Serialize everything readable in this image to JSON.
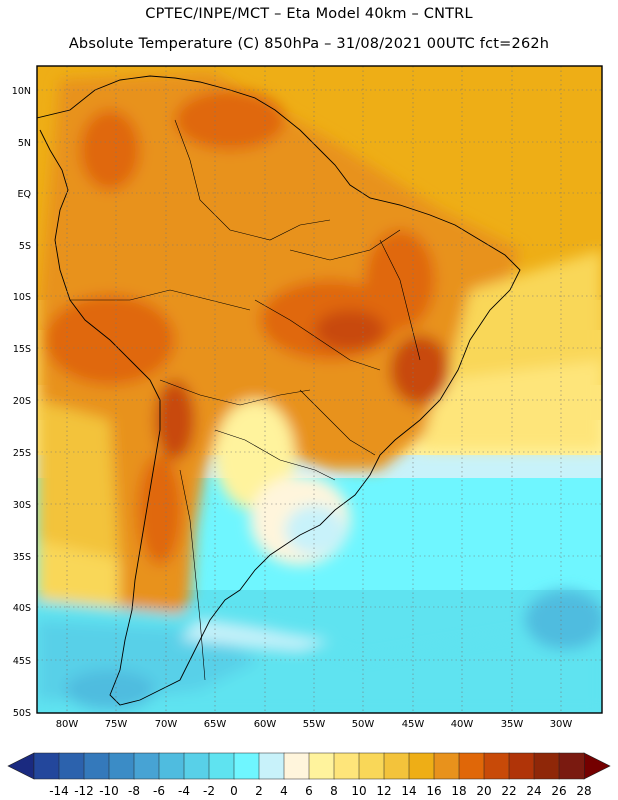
{
  "header": {
    "line1": "CPTEC/INPE/MCT –  Eta Model 40km – CNTRL",
    "line2": "Absolute Temperature (C) 850hPa – 31/08/2021 00UTC fct=262h"
  },
  "map": {
    "lat_labels": [
      "10N",
      "5N",
      "EQ",
      "5S",
      "10S",
      "15S",
      "20S",
      "25S",
      "30S",
      "35S",
      "40S",
      "45S",
      "50S"
    ],
    "lon_labels": [
      "80W",
      "75W",
      "70W",
      "65W",
      "60W",
      "55W",
      "50W",
      "45W",
      "40W",
      "35W",
      "30W"
    ],
    "grid": "dotted"
  },
  "colorbar": {
    "labels": [
      "-14",
      "-12",
      "-10",
      "-8",
      "-6",
      "-4",
      "-2",
      "0",
      "2",
      "4",
      "6",
      "8",
      "10",
      "12",
      "14",
      "16",
      "18",
      "20",
      "22",
      "24",
      "26",
      "28"
    ],
    "colors": [
      "#1a2a80",
      "#23479c",
      "#2c62ad",
      "#3479bb",
      "#3b8cc6",
      "#47a3d4",
      "#4fbcdf",
      "#58d0e8",
      "#5fe3f0",
      "#6ff6ff",
      "#c8f2fa",
      "#fff5dc",
      "#fff39d",
      "#fee57a",
      "#f9d758",
      "#f3c33b",
      "#eeae16",
      "#e8921c",
      "#e06708",
      "#c84a08",
      "#b03408",
      "#8f2708",
      "#7a1a10",
      "#740000"
    ],
    "low_color": "#1a2a80",
    "high_color": "#740000"
  }
}
